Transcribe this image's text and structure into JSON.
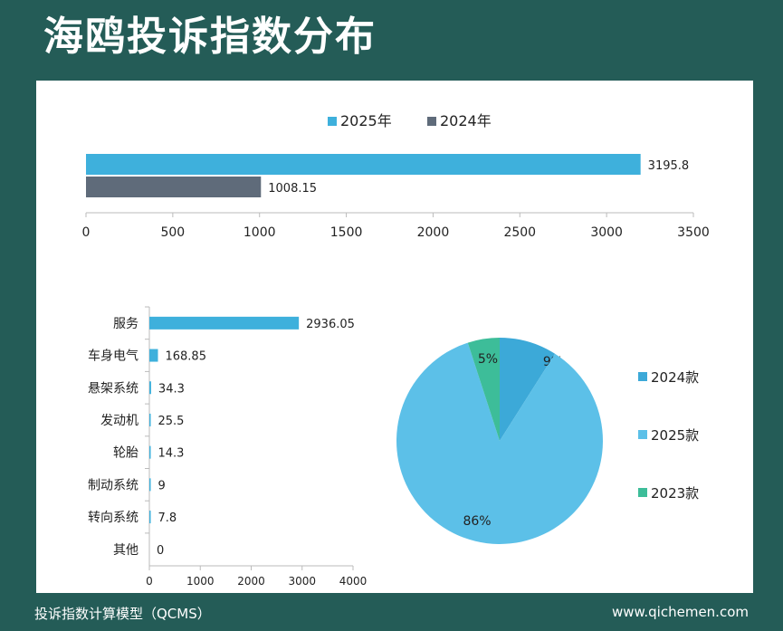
{
  "title": "海鸥投诉指数分布",
  "footer": {
    "left": "投诉指数计算模型（QCMS）",
    "right": "www.qichemen.com"
  },
  "colors": {
    "background": "#245c57",
    "c2025": "#3eb0dc",
    "c2024": "#5f6b7a",
    "pie_2024": "#3ca9d8",
    "pie_2025": "#5cc0e8",
    "pie_2023": "#3dbd99"
  },
  "chart_data": [
    {
      "type": "bar",
      "orientation": "horizontal",
      "series": [
        {
          "name": "2025年",
          "values": [
            3195.8
          ],
          "color": "#3eb0dc"
        },
        {
          "name": "2024年",
          "values": [
            1008.15
          ],
          "color": "#5f6b7a"
        }
      ],
      "data_labels": [
        "3195.8",
        "1008.15"
      ],
      "xlim": [
        0,
        3500
      ],
      "xticks": [
        "0",
        "500",
        "1000",
        "1500",
        "2000",
        "2500",
        "3000",
        "3500"
      ],
      "legend": "top-center"
    },
    {
      "type": "bar",
      "orientation": "horizontal",
      "categories": [
        "服务",
        "车身电气",
        "悬架系统",
        "发动机",
        "轮胎",
        "制动系统",
        "转向系统",
        "其他"
      ],
      "values": [
        2936.05,
        168.85,
        34.3,
        25.5,
        14.3,
        9,
        7.8,
        0
      ],
      "data_labels": [
        "2936.05",
        "168.85",
        "34.3",
        "25.5",
        "14.3",
        "9",
        "7.8",
        "0"
      ],
      "xlim": [
        0,
        4000
      ],
      "xticks": [
        "0",
        "1000",
        "2000",
        "3000",
        "4000"
      ],
      "color": "#3eb0dc"
    },
    {
      "type": "pie",
      "slices": [
        {
          "name": "2024款",
          "value": 9,
          "label": "9%",
          "color": "#3ca9d8"
        },
        {
          "name": "2025款",
          "value": 86,
          "label": "86%",
          "color": "#5cc0e8"
        },
        {
          "name": "2023款",
          "value": 5,
          "label": "5%",
          "color": "#3dbd99"
        }
      ],
      "legend": "right"
    }
  ]
}
